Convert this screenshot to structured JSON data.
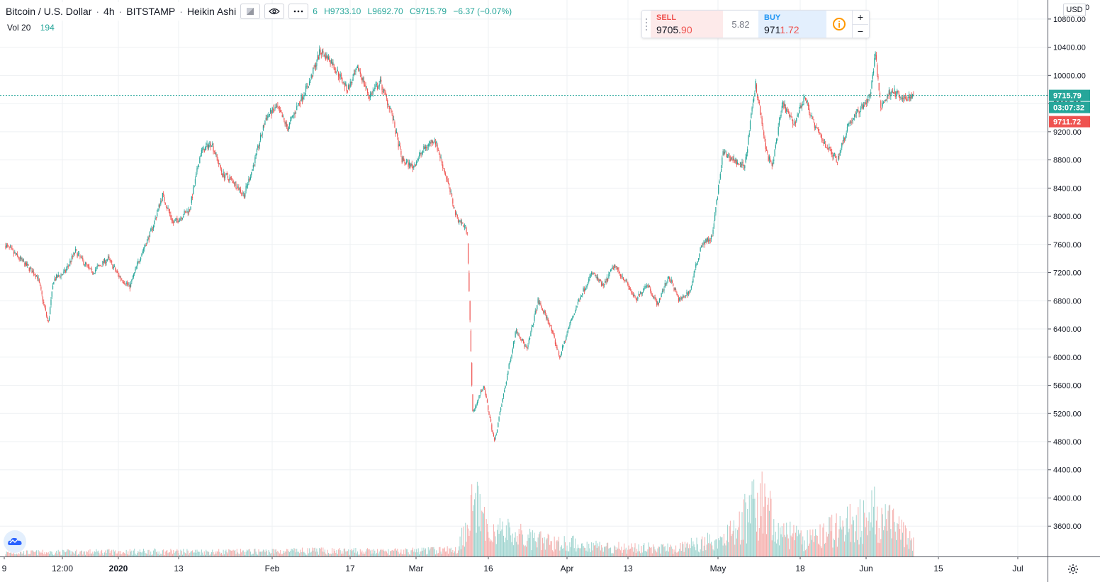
{
  "header": {
    "symbol": "Bitcoin / U.S. Dollar",
    "interval": "4h",
    "exchange": "BITSTAMP",
    "style": "Heikin Ashi",
    "sep": "·",
    "ohlc_open_fragment": "6",
    "ohlc_high": "H9733.10",
    "ohlc_low": "L9692.70",
    "ohlc_close": "C9715.79",
    "ohlc_change": "−6.37 (−0.07%)"
  },
  "volume_legend": {
    "label": "Vol 20",
    "value": "194"
  },
  "trade_panel": {
    "sell_label": "SELL",
    "sell_price_main": "9705.",
    "sell_price_tail": "90",
    "spread": "5.82",
    "buy_label": "BUY",
    "buy_price_main": "971",
    "buy_price_tail": "1.72",
    "plus": "+",
    "minus": "−",
    "info": "i"
  },
  "price_axis": {
    "currency": "USD",
    "top_partial_label": "0",
    "last_price_label": "9715.79",
    "countdown_label": "03:07:32",
    "bid_label": "9711.72"
  },
  "colors": {
    "up": "#26a69a",
    "down": "#ef5350",
    "up_volume": "#9fd4cf",
    "down_volume": "#f5aeac",
    "grid": "#eef0f3",
    "last_price": "#26a69a",
    "bid": "#ef5350"
  },
  "icons": {
    "hide": "square-icon",
    "visibility": "eye-icon",
    "more": "more-icon",
    "settings": "gear-icon",
    "brand": "cloud-logo-icon"
  },
  "chart_data": {
    "type": "candlestick-heikin-ashi",
    "title": "Bitcoin / U.S. Dollar",
    "interval": "4h",
    "ylim": [
      3250,
      11000
    ],
    "y_ticks": [
      3600,
      4000,
      4400,
      4800,
      5200,
      5600,
      6000,
      6400,
      6800,
      7200,
      7600,
      8000,
      8400,
      8800,
      9200,
      9600,
      10000,
      10400,
      10800
    ],
    "y_tick_labels": [
      "3600.00",
      "4000.00",
      "4400.00",
      "4800.00",
      "5200.00",
      "5600.00",
      "6000.00",
      "6400.00",
      "6800.00",
      "7200.00",
      "7600.00",
      "8000.00",
      "8400.00",
      "8800.00",
      "9200.00",
      "9600.00",
      "10000.00",
      "10400.00",
      "10800.00"
    ],
    "x_tick_labels": [
      "9",
      "12:00",
      "2020",
      "13",
      "Feb",
      "17",
      "Mar",
      "16",
      "Apr",
      "13",
      "May",
      "18",
      "Jun",
      "15",
      "Jul"
    ],
    "x_tick_bold": [
      "2020"
    ],
    "grid": true,
    "last_price": 9715.79,
    "bid_price": 9711.72,
    "price_path": [
      [
        "2019-12-30",
        7600
      ],
      [
        "2020-01-03",
        7300
      ],
      [
        "2020-01-05",
        7150
      ],
      [
        "2020-01-07",
        6480
      ],
      [
        "2020-01-08",
        7100
      ],
      [
        "2020-01-10",
        7200
      ],
      [
        "2020-01-12",
        7500
      ],
      [
        "2020-01-15",
        7200
      ],
      [
        "2020-01-18",
        7400
      ],
      [
        "2020-01-20",
        7150
      ],
      [
        "2020-01-22",
        7000
      ],
      [
        "2020-01-24",
        7450
      ],
      [
        "2020-01-26",
        7800
      ],
      [
        "2020-01-28",
        8300
      ],
      [
        "2020-01-30",
        7900
      ],
      [
        "2020-02-02",
        8100
      ],
      [
        "2020-02-04",
        8900
      ],
      [
        "2020-02-06",
        9050
      ],
      [
        "2020-02-08",
        8600
      ],
      [
        "2020-02-10",
        8500
      ],
      [
        "2020-02-12",
        8300
      ],
      [
        "2020-02-14",
        8800
      ],
      [
        "2020-02-16",
        9400
      ],
      [
        "2020-02-18",
        9550
      ],
      [
        "2020-02-20",
        9250
      ],
      [
        "2020-02-22",
        9600
      ],
      [
        "2020-02-24",
        9900
      ],
      [
        "2020-02-26",
        10350
      ],
      [
        "2020-02-28",
        10200
      ],
      [
        "2020-03-02",
        9800
      ],
      [
        "2020-03-04",
        10100
      ],
      [
        "2020-03-06",
        9700
      ],
      [
        "2020-03-08",
        9900
      ],
      [
        "2020-03-10",
        9500
      ],
      [
        "2020-03-12",
        8800
      ],
      [
        "2020-03-14",
        8700
      ],
      [
        "2020-03-16",
        8950
      ],
      [
        "2020-03-18",
        9100
      ],
      [
        "2020-03-20",
        8600
      ],
      [
        "2020-03-22",
        8000
      ],
      [
        "2020-03-24",
        7800
      ],
      [
        "2020-03-25",
        5200
      ],
      [
        "2020-03-27",
        5600
      ],
      [
        "2020-03-29",
        4800
      ],
      [
        "2020-03-31",
        5600
      ],
      [
        "2020-04-02",
        6400
      ],
      [
        "2020-04-04",
        6100
      ],
      [
        "2020-04-06",
        6800
      ],
      [
        "2020-04-08",
        6500
      ],
      [
        "2020-04-10",
        6000
      ],
      [
        "2020-04-12",
        6500
      ],
      [
        "2020-04-14",
        6900
      ],
      [
        "2020-04-16",
        7200
      ],
      [
        "2020-04-18",
        7000
      ],
      [
        "2020-04-20",
        7300
      ],
      [
        "2020-04-22",
        7100
      ],
      [
        "2020-04-24",
        6800
      ],
      [
        "2020-04-26",
        7050
      ],
      [
        "2020-04-28",
        6750
      ],
      [
        "2020-04-30",
        7150
      ],
      [
        "2020-05-02",
        6800
      ],
      [
        "2020-05-04",
        6950
      ],
      [
        "2020-05-06",
        7600
      ],
      [
        "2020-05-08",
        7700
      ],
      [
        "2020-05-10",
        8900
      ],
      [
        "2020-05-12",
        8800
      ],
      [
        "2020-05-14",
        8700
      ],
      [
        "2020-05-16",
        9900
      ],
      [
        "2020-05-18",
        8900
      ],
      [
        "2020-05-19",
        8700
      ],
      [
        "2020-05-21",
        9600
      ],
      [
        "2020-05-23",
        9300
      ],
      [
        "2020-05-25",
        9700
      ],
      [
        "2020-05-27",
        9250
      ],
      [
        "2020-05-29",
        9000
      ],
      [
        "2020-05-31",
        8800
      ],
      [
        "2020-06-02",
        9300
      ],
      [
        "2020-06-04",
        9500
      ],
      [
        "2020-06-06",
        9700
      ],
      [
        "2020-06-07",
        10300
      ],
      [
        "2020-06-08",
        9550
      ],
      [
        "2020-06-10",
        9800
      ],
      [
        "2020-06-12",
        9650
      ],
      [
        "2020-06-14",
        9715.79
      ]
    ],
    "volume_ylim": [
      0,
      1600
    ],
    "volume_profile": [
      [
        "2019-12-30",
        60
      ],
      [
        "2020-01-10",
        70
      ],
      [
        "2020-01-25",
        80
      ],
      [
        "2020-02-10",
        75
      ],
      [
        "2020-02-25",
        90
      ],
      [
        "2020-03-10",
        80
      ],
      [
        "2020-03-22",
        110
      ],
      [
        "2020-03-25",
        900
      ],
      [
        "2020-03-27",
        500
      ],
      [
        "2020-04-05",
        260
      ],
      [
        "2020-04-20",
        150
      ],
      [
        "2020-05-01",
        130
      ],
      [
        "2020-05-10",
        300
      ],
      [
        "2020-05-18",
        980
      ],
      [
        "2020-05-19",
        450
      ],
      [
        "2020-05-25",
        250
      ],
      [
        "2020-06-07",
        700
      ],
      [
        "2020-06-14",
        194
      ]
    ]
  }
}
